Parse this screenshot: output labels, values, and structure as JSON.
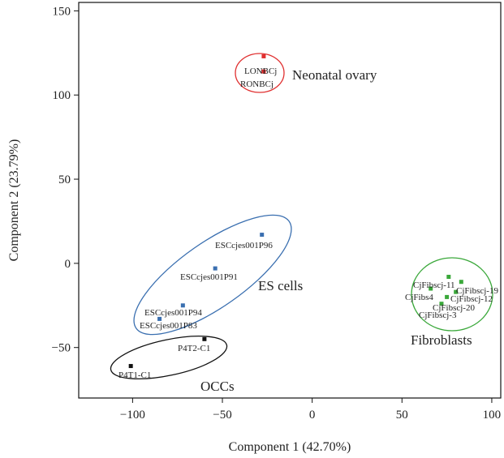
{
  "chart_data": {
    "type": "scatter",
    "xlabel": "Component 1 (42.70%)",
    "ylabel": "Component 2 (23.79%)",
    "xlim": [
      -130,
      105
    ],
    "ylim": [
      -80,
      155
    ],
    "xticks": [
      -100,
      -50,
      0,
      50,
      100
    ],
    "yticks": [
      -50,
      0,
      50,
      100,
      150
    ],
    "grid": false,
    "groups": [
      {
        "name": "Neonatal ovary",
        "color": "#e03030",
        "points": [
          {
            "label": "LONBCj",
            "x": -27,
            "y": 123
          },
          {
            "label": "RONBCj",
            "x": -27,
            "y": 114
          }
        ]
      },
      {
        "name": "ES cells",
        "color": "#3a6fb0",
        "points": [
          {
            "label": "ESCcjes001P96",
            "x": -28,
            "y": 17
          },
          {
            "label": "ESCcjes001P91",
            "x": -54,
            "y": -3
          },
          {
            "label": "ESCcjes001P94",
            "x": -72,
            "y": -25
          },
          {
            "label": "ESCcjes001P83",
            "x": -85,
            "y": -33
          }
        ]
      },
      {
        "name": "OCCs",
        "color": "#111111",
        "points": [
          {
            "label": "P4T2-C1",
            "x": -60,
            "y": -45
          },
          {
            "label": "P4T1-C1",
            "x": -101,
            "y": -61
          }
        ]
      },
      {
        "name": "Fibroblasts",
        "color": "#3aa83a",
        "points": [
          {
            "label": "CjFibscj-11",
            "x": 76,
            "y": -8
          },
          {
            "label": "CjFibscj-19",
            "x": 83,
            "y": -11
          },
          {
            "label": "CjFibs4",
            "x": 66,
            "y": -15
          },
          {
            "label": "CjFibscj-12",
            "x": 80,
            "y": -17
          },
          {
            "label": "CjFibscj-20",
            "x": 75,
            "y": -20
          },
          {
            "label": "CjFibscj-3",
            "x": 72,
            "y": -24
          }
        ]
      }
    ]
  }
}
